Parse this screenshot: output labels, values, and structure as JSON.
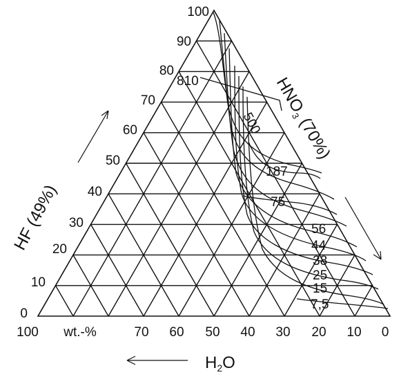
{
  "diagram": {
    "hf_axis": {
      "title": "HF (49%)",
      "ticks": [
        "0",
        "10",
        "20",
        "30",
        "40",
        "50",
        "60",
        "70",
        "80",
        "90",
        "100"
      ]
    },
    "hno3_axis": {
      "title_main": "HNO",
      "title_sub": "3",
      "title_rest": " (70%)"
    },
    "h2o_axis": {
      "title_main": "H",
      "title_sub": "2",
      "title_rest": "O",
      "unit": "wt.-%",
      "ticks": [
        "100",
        "70",
        "60",
        "50",
        "40",
        "30",
        "20",
        "10",
        "0"
      ]
    },
    "contour_labels": [
      "810",
      "500",
      "187",
      "75",
      "56",
      "44",
      "38",
      "25",
      "15",
      "7,5"
    ]
  }
}
